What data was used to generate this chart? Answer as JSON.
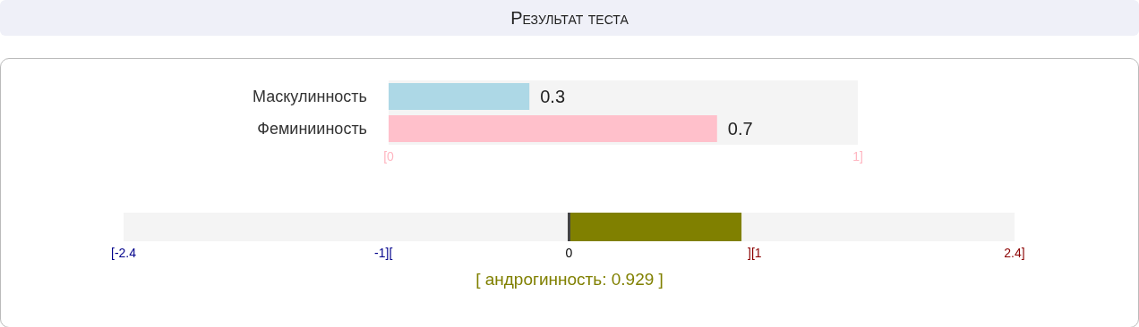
{
  "chart_data": [
    {
      "type": "bar",
      "orientation": "horizontal",
      "title": "Результат теста",
      "categories": [
        "Маскулинность",
        "Феминииность"
      ],
      "values": [
        0.3,
        0.7
      ],
      "colors": [
        "#add8e6",
        "#ffc0cb"
      ],
      "xlim": [
        0,
        1
      ],
      "xticks": [
        {
          "value": 0,
          "label": "[0"
        },
        {
          "value": 1,
          "label": "1]"
        }
      ],
      "data_labels": true
    },
    {
      "type": "bar",
      "orientation": "horizontal",
      "categories": [
        null
      ],
      "values": [
        0.929
      ],
      "color": "#808000",
      "xlim": [
        -2.4,
        2.4
      ],
      "xticks": [
        {
          "value": -2.4,
          "label": "[-2.4"
        },
        {
          "value": -1,
          "label": "-1]["
        },
        {
          "value": 0,
          "label": "0"
        },
        {
          "value": 1,
          "label": "][1"
        },
        {
          "value": 2.4,
          "label": "2.4]"
        }
      ],
      "ref_lines": [
        {
          "axis": "x",
          "value": 0,
          "color": "#444444"
        }
      ],
      "annotations": [
        "[ андрогинность: 0.929 ]"
      ]
    }
  ]
}
